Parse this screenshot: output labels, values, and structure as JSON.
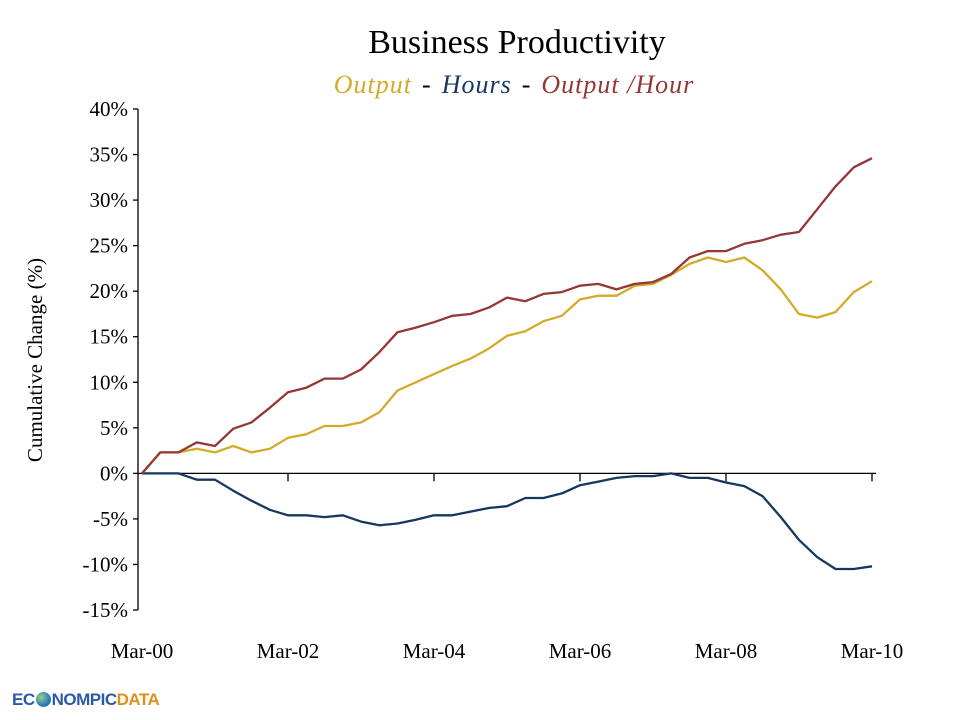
{
  "chart_data": {
    "type": "line",
    "title": "Business Productivity",
    "legend": [
      {
        "name": "Output",
        "color": "#D4AA2A"
      },
      {
        "name": "Hours",
        "color": "#17375E"
      },
      {
        "name": "Output /Hour",
        "color": "#953735"
      }
    ],
    "legend_separator": "-",
    "legend_placement": "top-center",
    "ylabel": "Cumulative Change (%)",
    "xlabel": "",
    "ylim": [
      -15,
      40
    ],
    "ytick_step": 5,
    "yticks": [
      "40%",
      "35%",
      "30%",
      "25%",
      "20%",
      "15%",
      "10%",
      "5%",
      "0%",
      "-5%",
      "-10%",
      "-15%"
    ],
    "xtick_labels": [
      "Mar-00",
      "Mar-02",
      "Mar-04",
      "Mar-06",
      "Mar-08",
      "Mar-10"
    ],
    "x_frequency": "quarterly",
    "x_start": "Mar-00",
    "x_end": "Mar-10",
    "grid": false,
    "series": [
      {
        "name": "Output",
        "color": "#D4AA2A",
        "values": [
          0,
          2.3,
          2.3,
          2.7,
          2.3,
          3.0,
          2.3,
          2.7,
          3.9,
          4.3,
          5.2,
          5.2,
          5.6,
          6.7,
          9.1,
          10.0,
          10.9,
          11.8,
          12.6,
          13.7,
          15.1,
          15.6,
          16.7,
          17.3,
          19.1,
          19.5,
          19.5,
          20.6,
          20.8,
          21.8,
          23.0,
          23.7,
          23.2,
          23.7,
          22.3,
          20.2,
          17.5,
          17.1,
          17.7,
          19.9,
          21.1
        ]
      },
      {
        "name": "Hours",
        "color": "#17375E",
        "values": [
          0,
          0,
          0,
          -0.7,
          -0.7,
          -1.9,
          -3.0,
          -4.0,
          -4.6,
          -4.6,
          -4.8,
          -4.6,
          -5.3,
          -5.7,
          -5.5,
          -5.1,
          -4.6,
          -4.6,
          -4.2,
          -3.8,
          -3.6,
          -2.7,
          -2.7,
          -2.2,
          -1.3,
          -0.9,
          -0.5,
          -0.3,
          -0.3,
          0,
          -0.5,
          -0.5,
          -1.0,
          -1.4,
          -2.5,
          -4.8,
          -7.3,
          -9.2,
          -10.5,
          -10.5,
          -10.2
        ]
      },
      {
        "name": "Output /Hour",
        "color": "#953735",
        "values": [
          0,
          2.3,
          2.3,
          3.4,
          3.0,
          4.9,
          5.6,
          7.2,
          8.9,
          9.4,
          10.4,
          10.4,
          11.4,
          13.3,
          15.5,
          16.0,
          16.6,
          17.3,
          17.5,
          18.2,
          19.3,
          18.9,
          19.7,
          19.9,
          20.6,
          20.8,
          20.2,
          20.8,
          21.0,
          21.9,
          23.7,
          24.4,
          24.4,
          25.2,
          25.6,
          26.2,
          26.5,
          29.0,
          31.5,
          33.6,
          34.6
        ]
      }
    ]
  },
  "logo": {
    "part1": "EC",
    "part2": "NOMPIC",
    "part3": "DATA"
  }
}
